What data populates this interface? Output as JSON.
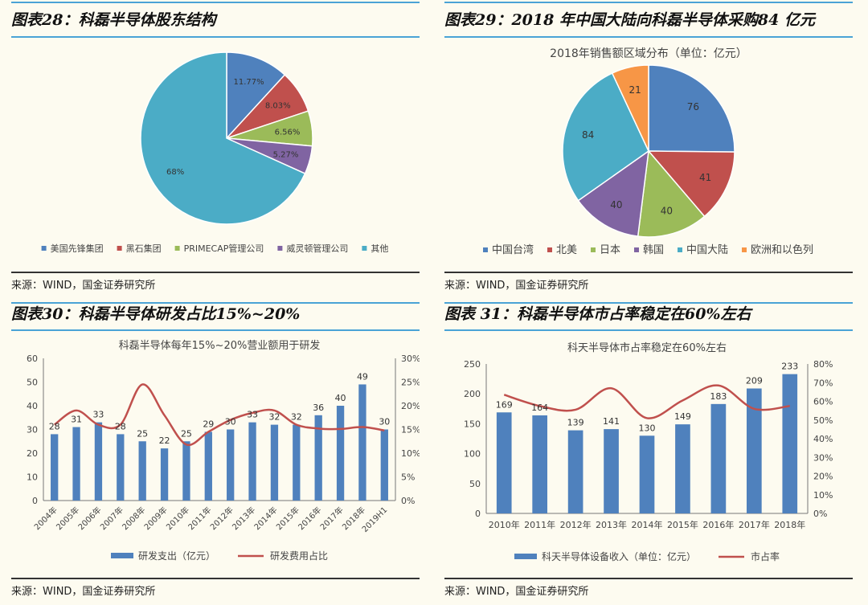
{
  "panels": {
    "p28": {
      "title": "图表28：科磊半导体股东结构",
      "source": "来源：WIND，国金证券研究所"
    },
    "p29": {
      "title": "图表29：2018 年中国大陆向科磊半导体采购84 亿元",
      "source": "来源：WIND，国金证券研究所"
    },
    "p30": {
      "title": "图表30：科磊半导体研发占比15%~20%",
      "source": "来源：WIND，国金证券研究所"
    },
    "p31": {
      "title": "图表 31：科磊半导体市占率稳定在60%左右",
      "source": "来源：WIND，国金证券研究所"
    }
  },
  "chart_data": [
    {
      "id": "c28",
      "type": "pie",
      "title": "",
      "labels": [
        "美国先锋集团",
        "黑石集团",
        "PRIMECAP管理公司",
        "威灵顿管理公司",
        "其他"
      ],
      "values": [
        11.77,
        8.03,
        6.56,
        5.27,
        68
      ],
      "value_labels": [
        "11.77%",
        "8.03%",
        "6.56%",
        "5.27%",
        "68%"
      ],
      "colors": [
        "#4f81bd",
        "#c0504d",
        "#9bbb59",
        "#8064a2",
        "#4bacc6"
      ],
      "legend": "bottom"
    },
    {
      "id": "c29",
      "type": "pie",
      "title": "2018年销售额区域分布（单位：亿元）",
      "labels": [
        "中国台湾",
        "北美",
        "日本",
        "韩国",
        "中国大陆",
        "欧洲和以色列"
      ],
      "values": [
        76,
        41,
        40,
        40,
        84,
        21
      ],
      "colors": [
        "#4f81bd",
        "#c0504d",
        "#9bbb59",
        "#8064a2",
        "#4bacc6",
        "#f79646"
      ],
      "legend": "bottom"
    },
    {
      "id": "c30",
      "type": "bar",
      "title": "科磊半导体每年15%~20%营业额用于研发",
      "categories": [
        "2004年",
        "2005年",
        "2006年",
        "2007年",
        "2008年",
        "2009年",
        "2010年",
        "2011年",
        "2012年",
        "2013年",
        "2014年",
        "2015年",
        "2016年",
        "2017年",
        "2018年",
        "2019H1"
      ],
      "series": [
        {
          "name": "研发支出（亿元）",
          "type": "bar",
          "axis": "left",
          "color": "#4f81bd",
          "values": [
            28,
            31,
            33,
            28,
            25,
            22,
            25,
            29,
            30,
            33,
            32,
            32,
            36,
            40,
            49,
            30
          ]
        },
        {
          "name": "研发费用占比",
          "type": "line",
          "axis": "right",
          "color": "#c0504d",
          "values": [
            16,
            19,
            16,
            16,
            24.5,
            18,
            11.8,
            14.5,
            17,
            18.5,
            19,
            16,
            15.2,
            15.1,
            15.5,
            14.8
          ]
        }
      ],
      "ylim": [
        0,
        60
      ],
      "yticks": [
        "0",
        "10",
        "20",
        "30",
        "40",
        "50",
        "60"
      ],
      "y2lim": [
        0,
        30
      ],
      "y2ticks": [
        "0%",
        "5%",
        "10%",
        "15%",
        "20%",
        "25%",
        "30%"
      ],
      "legend": "bottom"
    },
    {
      "id": "c31",
      "type": "bar",
      "title": "科天半导体市占率稳定在60%左右",
      "categories": [
        "2010年",
        "2011年",
        "2012年",
        "2013年",
        "2014年",
        "2015年",
        "2016年",
        "2017年",
        "2018年"
      ],
      "series": [
        {
          "name": "科天半导体设备收入（单位：亿元）",
          "type": "bar",
          "axis": "left",
          "color": "#4f81bd",
          "values": [
            169,
            164,
            139,
            141,
            130,
            149,
            183,
            209,
            233
          ]
        },
        {
          "name": "市占率",
          "type": "line",
          "axis": "right",
          "color": "#c0504d",
          "values": [
            63.5,
            57.5,
            55.5,
            67,
            51,
            60.5,
            68.5,
            56,
            57.5
          ]
        }
      ],
      "ylim": [
        0,
        250
      ],
      "yticks": [
        "0",
        "50",
        "100",
        "150",
        "200",
        "250"
      ],
      "y2lim": [
        0,
        80
      ],
      "y2ticks": [
        "0%",
        "10%",
        "20%",
        "30%",
        "40%",
        "50%",
        "60%",
        "70%",
        "80%"
      ],
      "legend": "bottom"
    }
  ]
}
